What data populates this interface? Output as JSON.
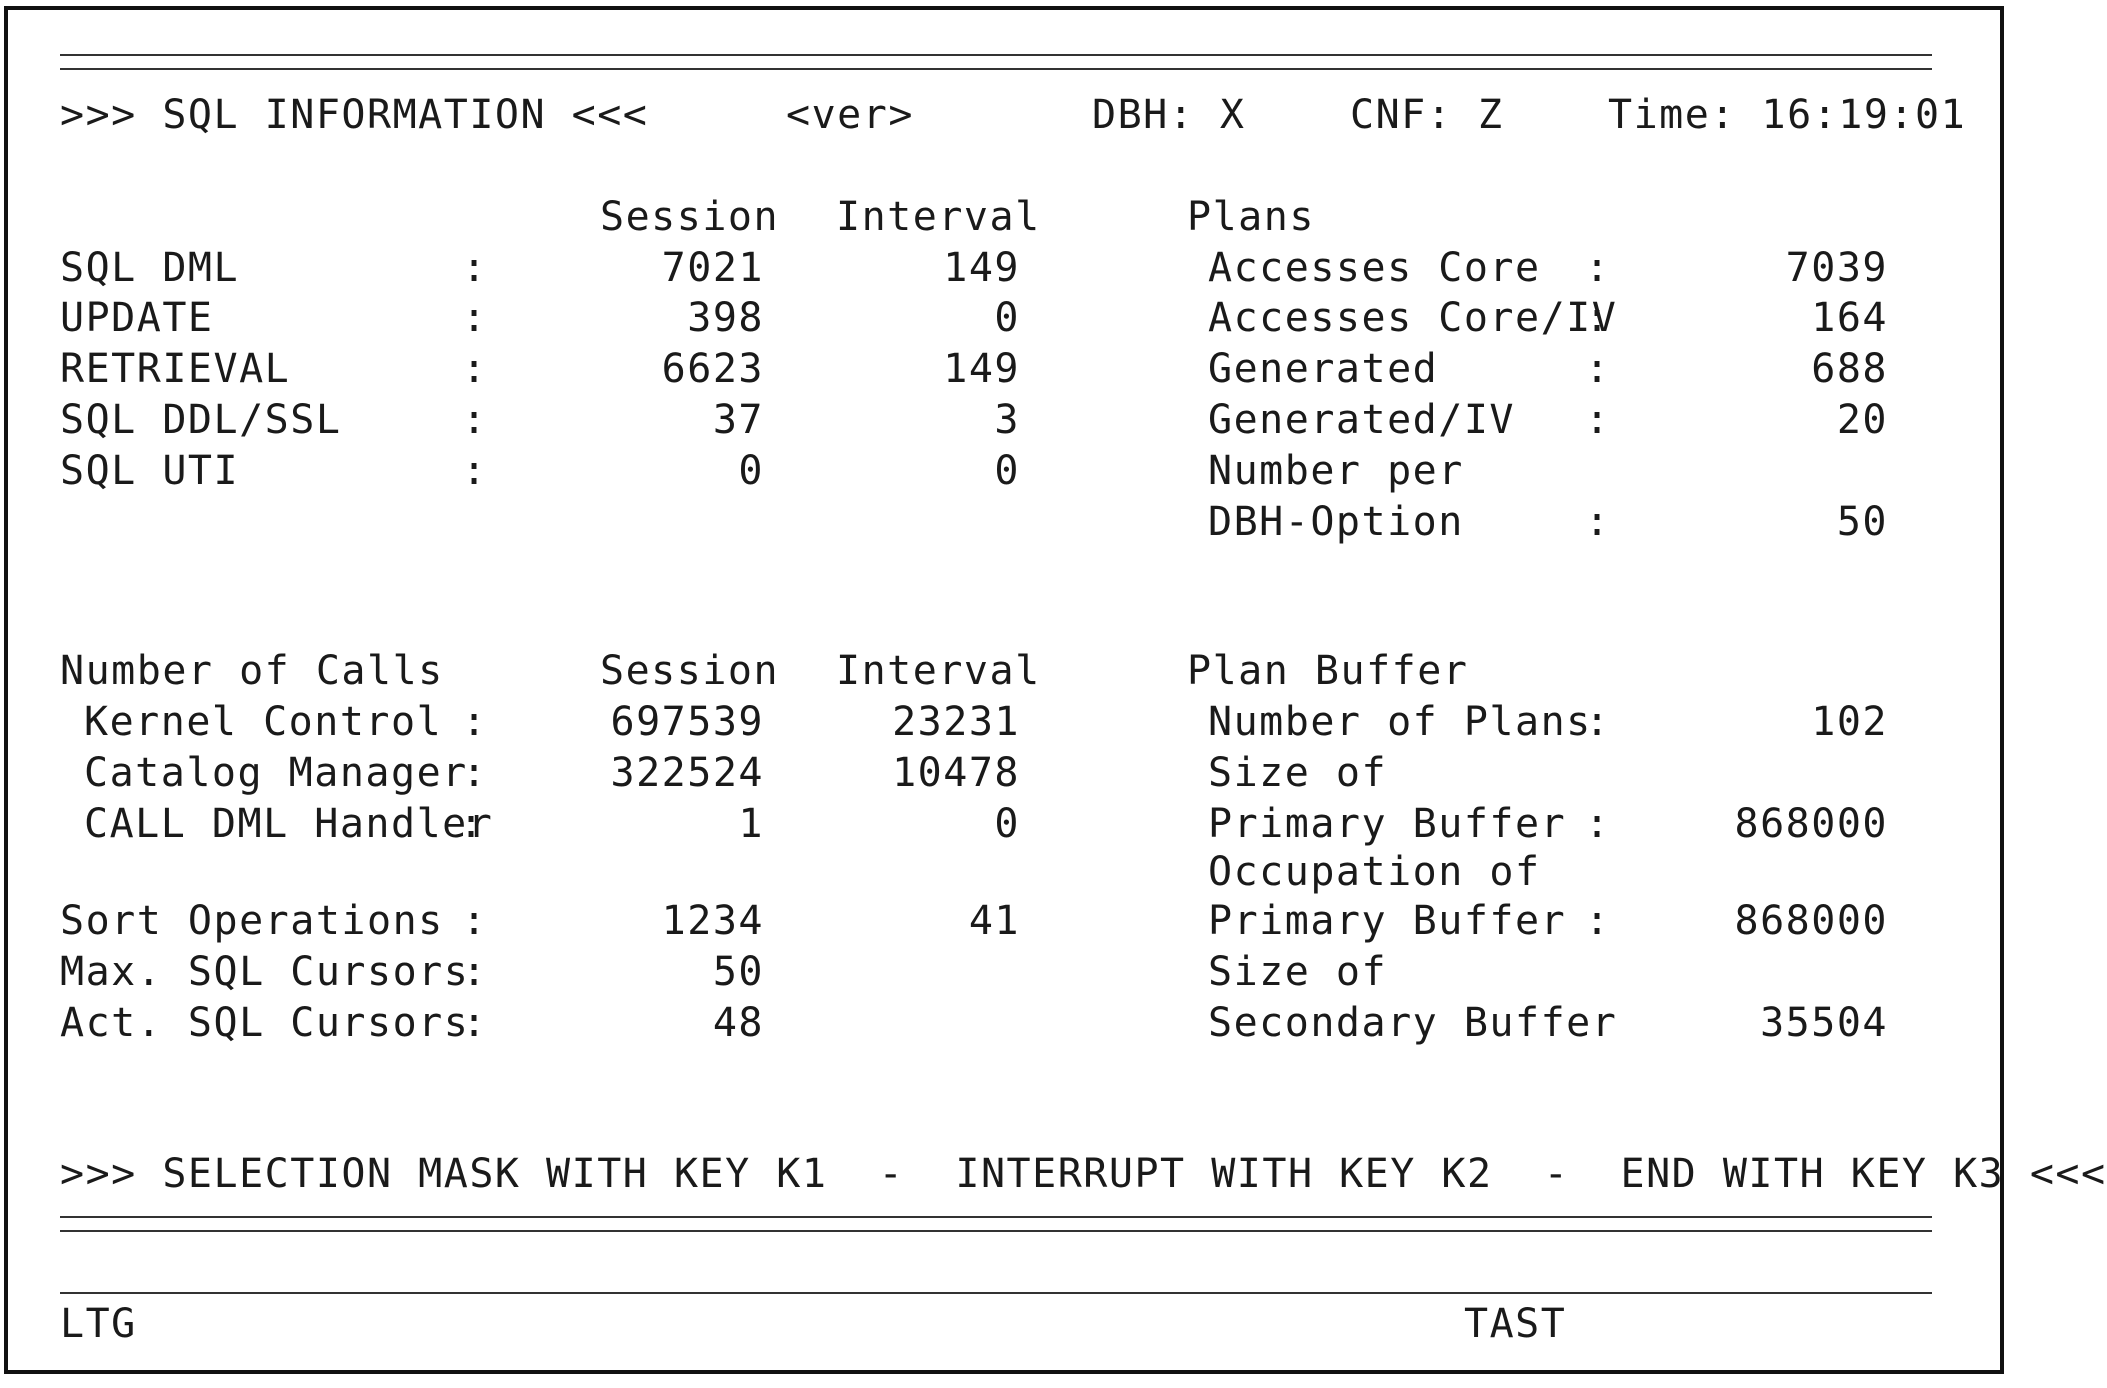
{
  "header": {
    "title": ">>> SQL INFORMATION <<<",
    "version": "<ver>",
    "dbh": "DBH: X",
    "cnf": "CNF: Z",
    "time": "Time: 16:19:01"
  },
  "sql_section": {
    "col_session": "Session",
    "col_interval": "Interval",
    "rows": [
      {
        "label": "SQL DML",
        "colon": ":",
        "session": "7021",
        "interval": "149"
      },
      {
        "label": "UPDATE",
        "colon": ":",
        "session": "398",
        "interval": "0"
      },
      {
        "label": "RETRIEVAL",
        "colon": ":",
        "session": "6623",
        "interval": "149"
      },
      {
        "label": "SQL DDL/SSL",
        "colon": ":",
        "session": "37",
        "interval": "3"
      },
      {
        "label": "SQL UTI",
        "colon": ":",
        "session": "0",
        "interval": "0"
      }
    ]
  },
  "plans": {
    "heading": "Plans",
    "rows": [
      {
        "label": "Accesses Core",
        "colon": ":",
        "value": "7039"
      },
      {
        "label": "Accesses Core/IV",
        "colon": ":",
        "value": "164"
      },
      {
        "label": "Generated",
        "colon": ":",
        "value": "688"
      },
      {
        "label": "Generated/IV",
        "colon": ":",
        "value": "20"
      },
      {
        "label": "Number per",
        "colon": "",
        "value": ""
      },
      {
        "label": "DBH-Option",
        "colon": ":",
        "value": "50"
      }
    ]
  },
  "calls_section": {
    "heading": "Number of Calls",
    "col_session": "Session",
    "col_interval": "Interval",
    "rows": [
      {
        "label": "Kernel Control",
        "colon": ":",
        "session": "697539",
        "interval": "23231"
      },
      {
        "label": "Catalog Manager",
        "colon": ":",
        "session": "322524",
        "interval": "10478"
      },
      {
        "label": "CALL DML Handler",
        "colon": ":",
        "session": "1",
        "interval": "0"
      }
    ]
  },
  "misc_section": {
    "rows": [
      {
        "label": "Sort Operations",
        "colon": ":",
        "session": "1234",
        "interval": "41"
      },
      {
        "label": "Max. SQL Cursors",
        "colon": ":",
        "session": "50",
        "interval": ""
      },
      {
        "label": "Act. SQL Cursors",
        "colon": ":",
        "session": "48",
        "interval": ""
      }
    ]
  },
  "plan_buffer": {
    "heading": "Plan Buffer",
    "rows": [
      {
        "label": "Number of Plans",
        "colon": ":",
        "value": "102"
      },
      {
        "label": "Size of",
        "colon": "",
        "value": ""
      },
      {
        "label": "Primary Buffer",
        "colon": ":",
        "value": "868000"
      },
      {
        "label": "Occupation of",
        "colon": "",
        "value": ""
      },
      {
        "label": "Primary Buffer",
        "colon": ":",
        "value": "868000"
      },
      {
        "label": "Size of",
        "colon": "",
        "value": ""
      },
      {
        "label": "Secondary Buffer",
        "colon": ":",
        "value": "35504"
      }
    ]
  },
  "footer": {
    "keys_line": ">>> SELECTION MASK WITH KEY K1  -  INTERRUPT WITH KEY K2  -  END WITH KEY K3 <<<",
    "left_status": "LTG",
    "right_status": "TAST"
  }
}
